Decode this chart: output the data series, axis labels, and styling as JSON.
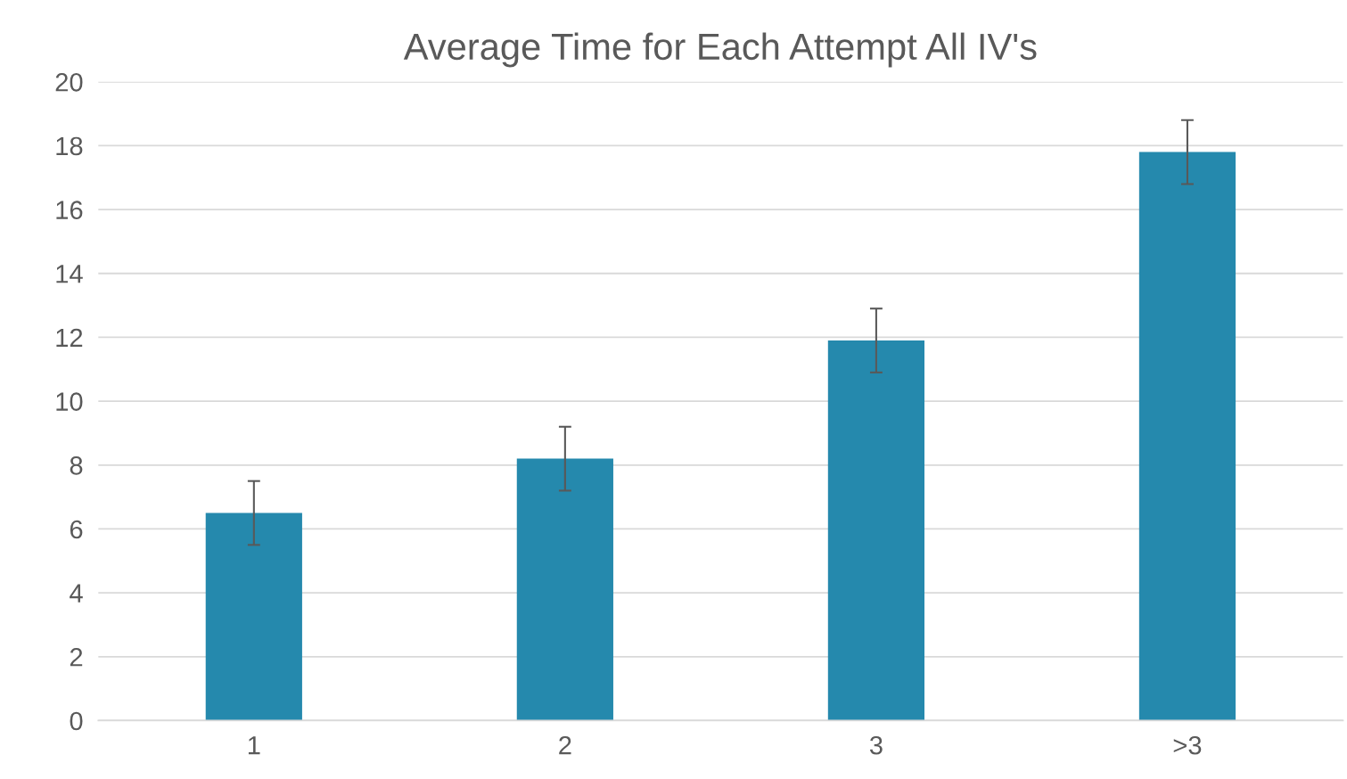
{
  "chart_data": {
    "type": "bar",
    "title": "Average Time for Each Attempt All IV's",
    "categories": [
      "1",
      "2",
      "3",
      ">3"
    ],
    "values": [
      6.5,
      8.2,
      11.9,
      17.8
    ],
    "errors": [
      1,
      1,
      1,
      1
    ],
    "color": "#2589ad",
    "ylim": [
      0,
      20
    ],
    "yticks": [
      0,
      2,
      4,
      6,
      8,
      10,
      12,
      14,
      16,
      18,
      20
    ],
    "grid": "y",
    "legend": false
  }
}
